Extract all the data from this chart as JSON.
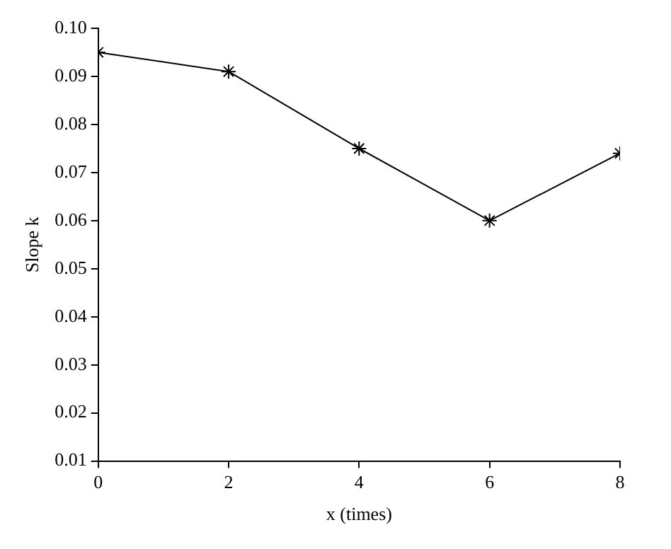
{
  "chart_data": {
    "type": "line",
    "xlabel": "x (times)",
    "ylabel": "Slope k",
    "x": [
      0,
      2,
      4,
      6,
      8
    ],
    "series": [
      {
        "color": "#000000",
        "values": [
          0.095,
          0.091,
          0.075,
          0.06,
          0.074
        ]
      }
    ],
    "xlim": [
      0,
      8
    ],
    "xticks": [
      0,
      2,
      4,
      6,
      8
    ],
    "ylim": [
      0.01,
      0.1
    ],
    "yticks": [
      0.01,
      0.02,
      0.03,
      0.04,
      0.05,
      0.06,
      0.07,
      0.08,
      0.09,
      {
        "value": 0.1,
        "label": "0.10"
      }
    ],
    "grid": false,
    "legend": false,
    "marker": "cross",
    "line_style": "solid"
  }
}
